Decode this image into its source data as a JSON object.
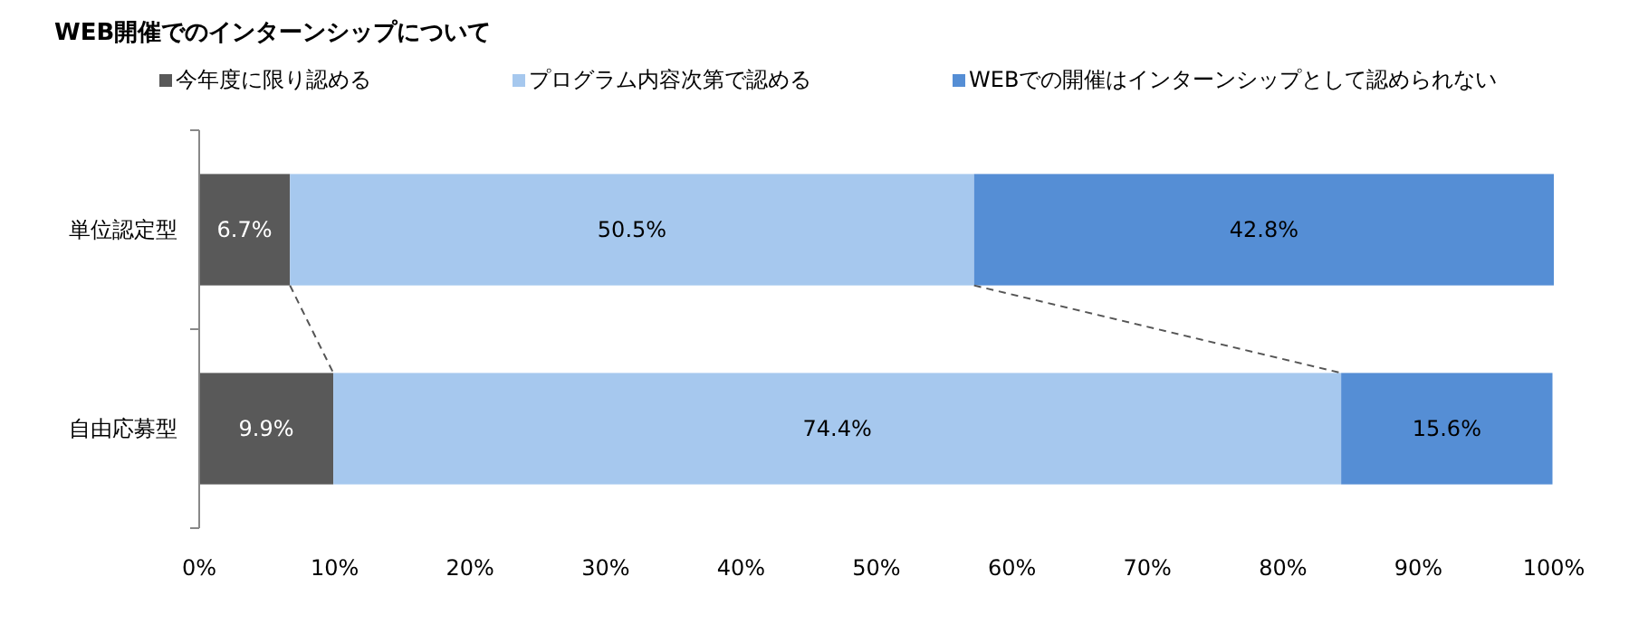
{
  "chart_data": {
    "type": "bar",
    "title": "WEB開催でのインターンシップについて",
    "orientation": "horizontal",
    "stacked": true,
    "categories": [
      "単位認定型",
      "自由応募型"
    ],
    "series": [
      {
        "name": "今年度に限り認める",
        "color": "#595959",
        "values": [
          6.7,
          9.9
        ],
        "value_labels": [
          "6.7%",
          "9.9%"
        ]
      },
      {
        "name": "プログラム内容次第で認める",
        "color": "#a6c8ee",
        "values": [
          50.5,
          74.4
        ],
        "value_labels": [
          "50.5%",
          "74.4%"
        ]
      },
      {
        "name": "WEBでの開催はインターンシップとして認められない",
        "color": "#558ed5",
        "values": [
          42.8,
          15.6
        ],
        "value_labels": [
          "42.8%",
          "15.6%"
        ]
      }
    ],
    "xlim": [
      0,
      100
    ],
    "xticks": [
      {
        "value": 0,
        "label": "0%"
      },
      {
        "value": 10,
        "label": "10%"
      },
      {
        "value": 20,
        "label": "20%"
      },
      {
        "value": 30,
        "label": "30%"
      },
      {
        "value": 40,
        "label": "40%"
      },
      {
        "value": 50,
        "label": "50%"
      },
      {
        "value": 60,
        "label": "60%"
      },
      {
        "value": 70,
        "label": "70%"
      },
      {
        "value": 80,
        "label": "80%"
      },
      {
        "value": 90,
        "label": "90%"
      },
      {
        "value": 100,
        "label": "100%"
      }
    ],
    "legend": "top left"
  }
}
